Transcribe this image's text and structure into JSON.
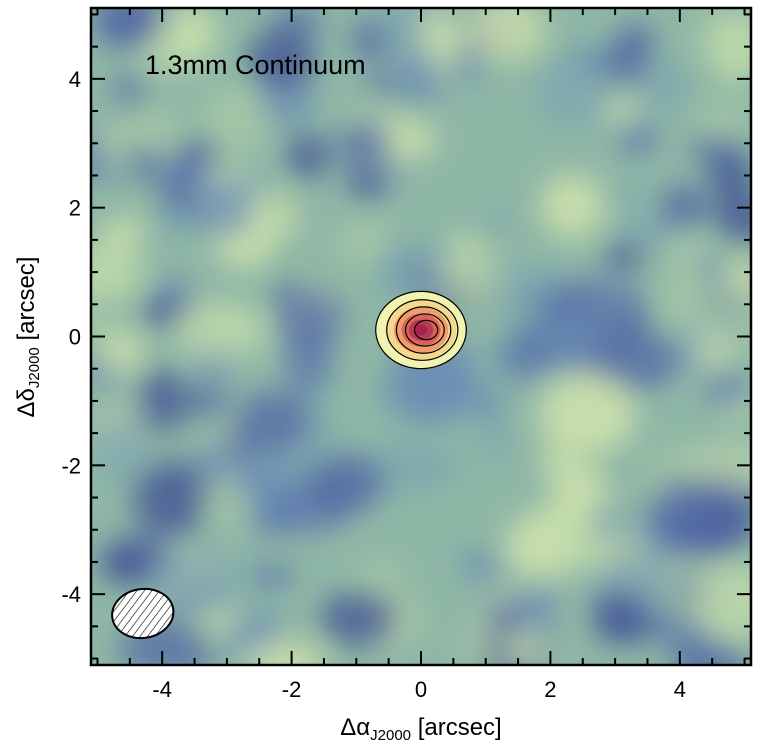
{
  "chart_data": {
    "type": "heatmap",
    "title": "1.3mm Continuum",
    "xlabel": "Δα",
    "xlabel_sub": "J2000",
    "xlabel_unit": " [arcsec]",
    "ylabel": "Δδ",
    "ylabel_sub": "J2000",
    "ylabel_unit": " [arcsec]",
    "xlim": [
      -5.1,
      5.1
    ],
    "ylim": [
      -5.1,
      5.1
    ],
    "x_ticks": [
      -4,
      -2,
      0,
      2,
      4
    ],
    "y_ticks": [
      -4,
      -2,
      0,
      2,
      4
    ],
    "x_tick_labels": [
      "-4",
      "-2",
      "0",
      "2",
      "4"
    ],
    "y_tick_labels": [
      "-4",
      "-2",
      "0",
      "2",
      "4"
    ],
    "minor_tick_step": 0.5,
    "colormap": "spectral",
    "colors": {
      "background_mid": "#8eb6a6",
      "low": "#4a5fa0",
      "high": "#f3f4b0",
      "peak": "#a5234e",
      "contour": "#000000"
    },
    "source": {
      "x": 0.0,
      "y": 0.1,
      "sigma_x": 0.2,
      "sigma_y": 0.18,
      "contour_semi_axes": [
        [
          0.7,
          0.6
        ],
        [
          0.55,
          0.47
        ],
        [
          0.42,
          0.36
        ],
        [
          0.3,
          0.25
        ],
        [
          0.18,
          0.15
        ]
      ]
    },
    "beam": {
      "x": -4.3,
      "y": -4.3,
      "major": 0.95,
      "minor": 0.76,
      "pa_deg": -8
    },
    "grid": false
  }
}
